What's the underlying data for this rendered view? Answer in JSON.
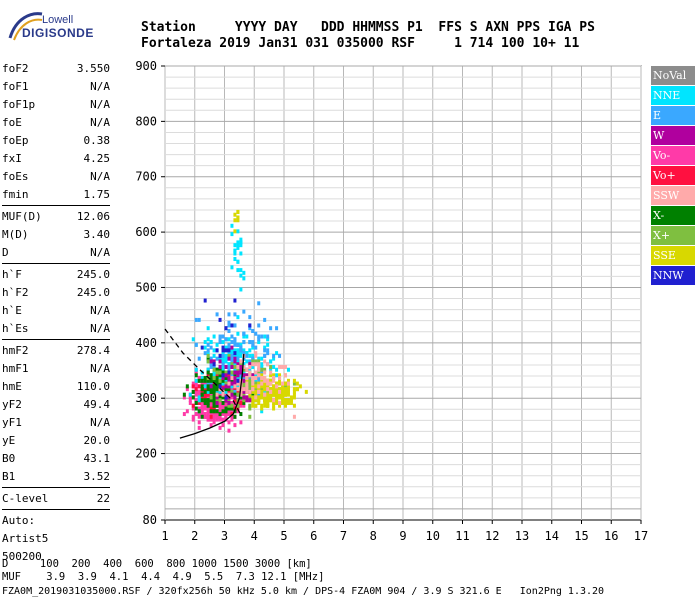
{
  "logo": {
    "line1": "Lowell",
    "line2": "DIGISONDE"
  },
  "header": {
    "labels": "Station     YYYY DAY   DDD HHMMSS P1  FFS S AXN PPS IGA PS",
    "values": "Fortaleza 2019 Jan31 031 035000 RSF     1 714 100 10+ 11"
  },
  "params": {
    "group1": [
      {
        "name": "foF2",
        "value": "3.550"
      },
      {
        "name": "foF1",
        "value": "N/A"
      },
      {
        "name": "foF1p",
        "value": "N/A"
      },
      {
        "name": "foE",
        "value": "N/A"
      },
      {
        "name": "foEp",
        "value": "0.38"
      },
      {
        "name": "fxI",
        "value": "4.25"
      },
      {
        "name": "foEs",
        "value": "N/A"
      },
      {
        "name": "fmin",
        "value": "1.75"
      }
    ],
    "group2": [
      {
        "name": "MUF(D)",
        "value": "12.06"
      },
      {
        "name": "M(D)",
        "value": "3.40"
      },
      {
        "name": "D",
        "value": "N/A"
      }
    ],
    "group3": [
      {
        "name": "h`F",
        "value": "245.0"
      },
      {
        "name": "h`F2",
        "value": "245.0"
      },
      {
        "name": "h`E",
        "value": "N/A"
      },
      {
        "name": "h`Es",
        "value": "N/A"
      }
    ],
    "group4": [
      {
        "name": "hmF2",
        "value": "278.4"
      },
      {
        "name": "hmF1",
        "value": "N/A"
      },
      {
        "name": "hmE",
        "value": "110.0"
      },
      {
        "name": "yF2",
        "value": "49.4"
      },
      {
        "name": "yF1",
        "value": "N/A"
      },
      {
        "name": "yE",
        "value": "20.0"
      },
      {
        "name": "B0",
        "value": "43.1"
      },
      {
        "name": "B1",
        "value": "3.52"
      }
    ],
    "group5": [
      {
        "name": "C-level",
        "value": "22"
      }
    ],
    "auto": [
      "Auto:",
      "Artist5",
      "500200"
    ]
  },
  "legend": [
    {
      "label": "NoVal",
      "color": "#8c8c8c"
    },
    {
      "label": "NNE",
      "color": "#00e5ff"
    },
    {
      "label": "E",
      "color": "#3aa8ff"
    },
    {
      "label": "W",
      "color": "#b0009e"
    },
    {
      "label": "Vo-",
      "color": "#ff3aa8"
    },
    {
      "label": "Vo+",
      "color": "#ff1040"
    },
    {
      "label": "SSW",
      "color": "#ffaaaa"
    },
    {
      "label": "X-",
      "color": "#008000"
    },
    {
      "label": "X+",
      "color": "#7fbf40"
    },
    {
      "label": "SSE",
      "color": "#d8d800"
    },
    {
      "label": "NNW",
      "color": "#2020d0"
    }
  ],
  "footer": {
    "d_line": "D     100  200  400  600  800 1000 1500 3000 [km]",
    "muf_line": "MUF    3.9  3.9  4.1  4.4  4.9  5.5  7.3 12.1 [MHz]",
    "file_line": "FZA0M_2019031035000.RSF / 320fx256h 50 kHz 5.0 km / DPS-4 FZA0M 904 / 3.9 S 321.6 E   Ion2Png 1.3.20"
  },
  "chart_data": {
    "type": "scatter",
    "xlim": [
      1,
      17
    ],
    "ylim": [
      80,
      900
    ],
    "x_ticks": [
      1,
      2,
      3,
      4,
      5,
      6,
      7,
      8,
      9,
      10,
      11,
      12,
      13,
      14,
      15,
      16,
      17
    ],
    "y_ticks": [
      80,
      200,
      300,
      400,
      500,
      600,
      700,
      800,
      900
    ],
    "grid": true,
    "legend_position": "right",
    "clusters": [
      {
        "color": "#ff3aa8",
        "cx": 2.6,
        "cy": 300,
        "sx": 0.6,
        "sy": 30,
        "n": 420
      },
      {
        "color": "#ff1040",
        "cx": 2.9,
        "cy": 320,
        "sx": 0.55,
        "sy": 30,
        "n": 150
      },
      {
        "color": "#00e5ff",
        "cx": 3.3,
        "cy": 360,
        "sx": 1.0,
        "sy": 45,
        "n": 230
      },
      {
        "color": "#3aa8ff",
        "cx": 3.5,
        "cy": 380,
        "sx": 0.9,
        "sy": 55,
        "n": 140
      },
      {
        "color": "#008000",
        "cx": 2.7,
        "cy": 315,
        "sx": 0.6,
        "sy": 30,
        "n": 140
      },
      {
        "color": "#7fbf40",
        "cx": 3.6,
        "cy": 330,
        "sx": 0.9,
        "sy": 35,
        "n": 120
      },
      {
        "color": "#d8d800",
        "cx": 4.6,
        "cy": 315,
        "sx": 0.6,
        "sy": 20,
        "n": 220
      },
      {
        "color": "#b0009e",
        "cx": 3.2,
        "cy": 340,
        "sx": 0.5,
        "sy": 35,
        "n": 60
      },
      {
        "color": "#ffaaaa",
        "cx": 4.0,
        "cy": 335,
        "sx": 0.8,
        "sy": 30,
        "n": 90
      },
      {
        "color": "#2020d0",
        "cx": 2.9,
        "cy": 390,
        "sx": 0.5,
        "sy": 60,
        "n": 20
      },
      {
        "color": "#00e5ff",
        "cx": 3.4,
        "cy": 560,
        "sx": 0.15,
        "sy": 45,
        "n": 25
      },
      {
        "color": "#d8d800",
        "cx": 3.35,
        "cy": 630,
        "sx": 0.08,
        "sy": 15,
        "n": 8
      }
    ],
    "profile_solid": [
      [
        1.5,
        228
      ],
      [
        2.0,
        236
      ],
      [
        2.5,
        246
      ],
      [
        3.0,
        258
      ],
      [
        3.3,
        272
      ],
      [
        3.5,
        300
      ],
      [
        3.6,
        345
      ],
      [
        3.65,
        380
      ]
    ],
    "profile_dashed": [
      [
        1.0,
        425
      ],
      [
        1.6,
        382
      ],
      [
        2.2,
        350
      ],
      [
        2.8,
        320
      ],
      [
        3.3,
        295
      ],
      [
        3.55,
        270
      ]
    ]
  }
}
